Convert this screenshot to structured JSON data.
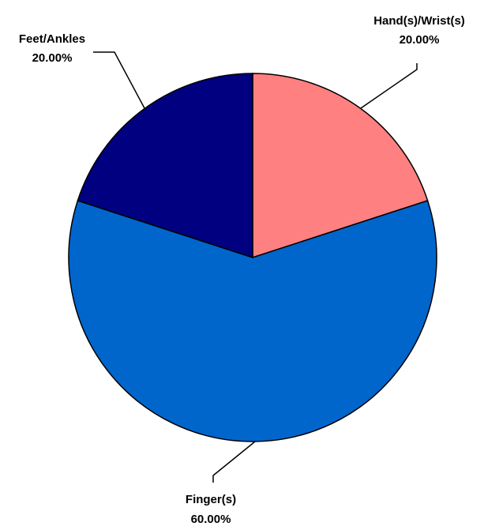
{
  "chart_data": {
    "type": "pie",
    "categories": [
      "Hand(s)/Wrist(s)",
      "Finger(s)",
      "Feet/Ankles"
    ],
    "values": [
      20.0,
      60.0,
      20.0
    ],
    "value_labels": [
      "20.00%",
      "60.00%",
      "20.00%"
    ],
    "colors": [
      "#ff8080",
      "#0066cc",
      "#000080"
    ],
    "start_angle_deg": 0,
    "direction": "clockwise",
    "legend": "none"
  }
}
